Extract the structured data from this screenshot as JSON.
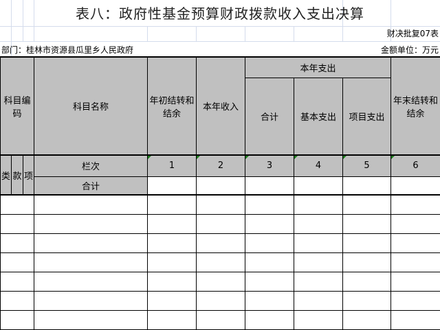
{
  "title": "表八：政府性基金预算财政拨款收入支出决算",
  "form_code": "财决批复07表",
  "department": "部门：桂林市资源县瓜里乡人民政府",
  "unit": "金额单位：万元",
  "headers": {
    "subject_code": "科目编码",
    "subject_name": "科目名称",
    "opening_balance": "年初结转和结余",
    "current_income": "本年收入",
    "current_expense": "本年支出",
    "total": "合计",
    "basic_expense": "基本支出",
    "project_expense": "项目支出",
    "closing_balance": "年末结转和结余",
    "lei": "类",
    "kuan": "款",
    "xiang": "项",
    "column_no": "栏次",
    "column_numbers": [
      "1",
      "2",
      "3",
      "4",
      "5",
      "6"
    ],
    "sum_row": "合计"
  },
  "colors": {
    "header_bg": "#c0c0c0",
    "marker": "#1a7a1a"
  }
}
